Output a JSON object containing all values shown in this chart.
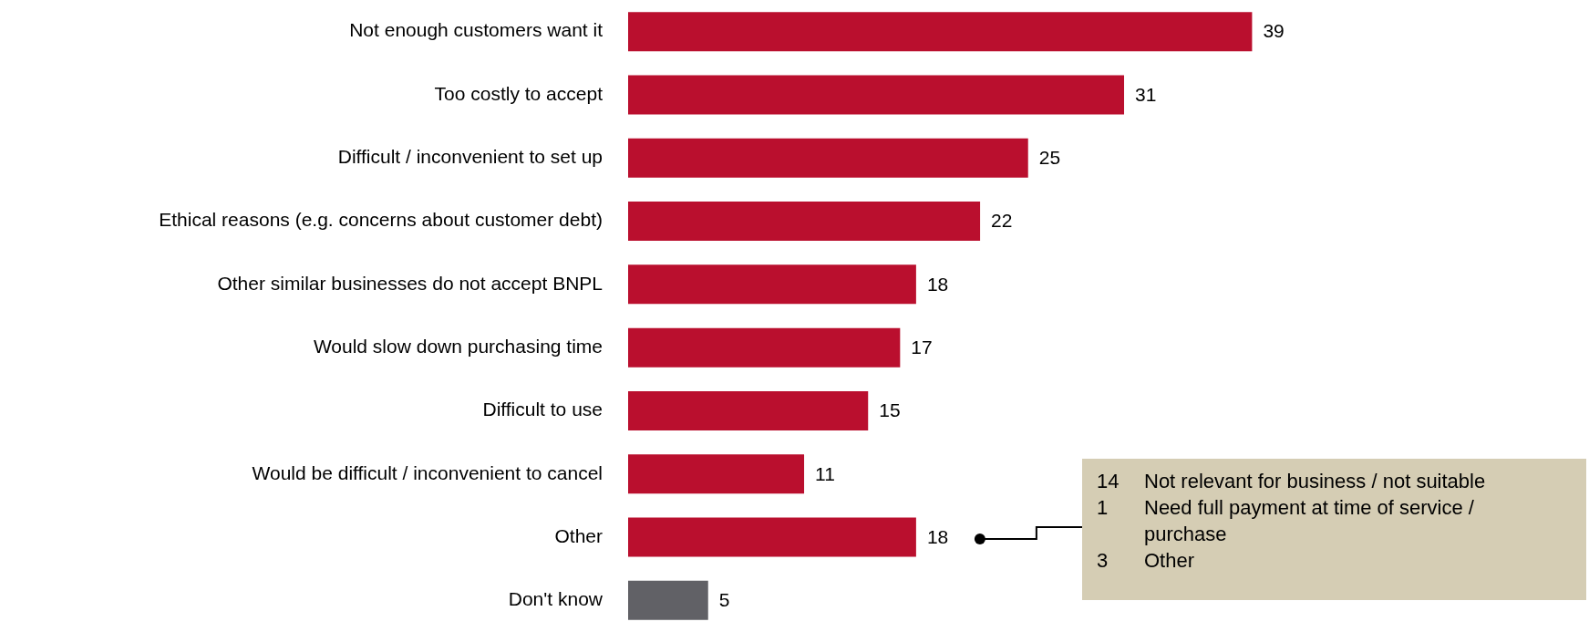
{
  "chart_data": {
    "type": "bar",
    "orientation": "horizontal",
    "categories": [
      "Not enough customers want it",
      "Too costly to accept",
      "Difficult / inconvenient to set up",
      "Ethical reasons (e.g. concerns about customer debt)",
      "Other similar businesses do not accept BNPL",
      "Would slow down purchasing time",
      "Difficult to use",
      "Would be difficult / inconvenient to cancel",
      "Other",
      "Don't know"
    ],
    "values": [
      39,
      31,
      25,
      22,
      18,
      17,
      15,
      11,
      18,
      5
    ],
    "colors": [
      "#ba0f2e",
      "#ba0f2e",
      "#ba0f2e",
      "#ba0f2e",
      "#ba0f2e",
      "#ba0f2e",
      "#ba0f2e",
      "#ba0f2e",
      "#ba0f2e",
      "#616166"
    ],
    "data_labels": true,
    "legend": false,
    "annotations": [
      "14 Not relevant for business / not suitable",
      "1 Need full payment at time of service / purchase",
      "3 Other"
    ]
  }
}
